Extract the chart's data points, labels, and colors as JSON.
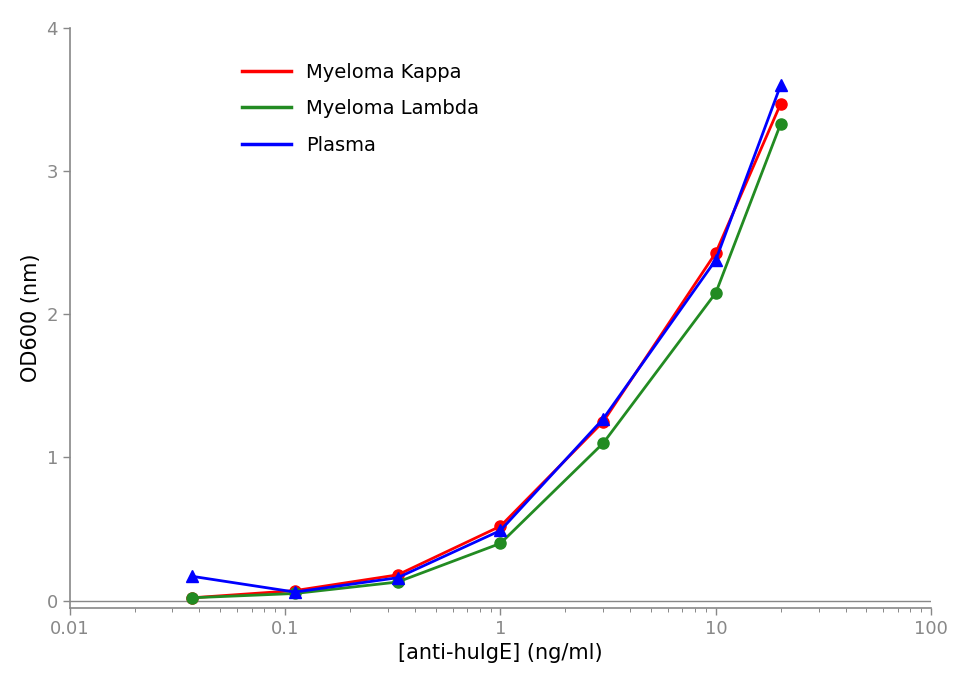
{
  "series": [
    {
      "label": "Myeloma Kappa",
      "color": "#FF0000",
      "marker": "o",
      "markersize": 8,
      "x": [
        0.037,
        0.111,
        0.333,
        1.0,
        3.0,
        10.0,
        20.0
      ],
      "y": [
        0.02,
        0.07,
        0.18,
        0.52,
        1.25,
        2.43,
        3.47
      ]
    },
    {
      "label": "Myeloma Lambda",
      "color": "#228B22",
      "marker": "o",
      "markersize": 8,
      "x": [
        0.037,
        0.111,
        0.333,
        1.0,
        3.0,
        10.0,
        20.0
      ],
      "y": [
        0.02,
        0.05,
        0.13,
        0.4,
        1.1,
        2.15,
        3.33
      ]
    },
    {
      "label": "Plasma",
      "color": "#0000FF",
      "marker": "^",
      "markersize": 8,
      "x": [
        0.037,
        0.111,
        0.333,
        1.0,
        3.0,
        10.0,
        20.0
      ],
      "y": [
        0.17,
        0.06,
        0.16,
        0.49,
        1.27,
        2.38,
        3.6
      ]
    }
  ],
  "xlabel": "[anti-huIgE] (ng/ml)",
  "ylabel": "OD600 (nm)",
  "xlim": [
    0.01,
    100
  ],
  "ylim": [
    -0.05,
    4.0
  ],
  "yticks": [
    0,
    1,
    2,
    3,
    4
  ],
  "xtick_labels": {
    "0.01": "0.01",
    "0.1": "0.1",
    "1": "1",
    "10": "10",
    "100": "100"
  },
  "linewidth": 2.0,
  "legend_fontsize": 14,
  "axis_label_fontsize": 15,
  "tick_fontsize": 13,
  "background_color": "#FFFFFF"
}
